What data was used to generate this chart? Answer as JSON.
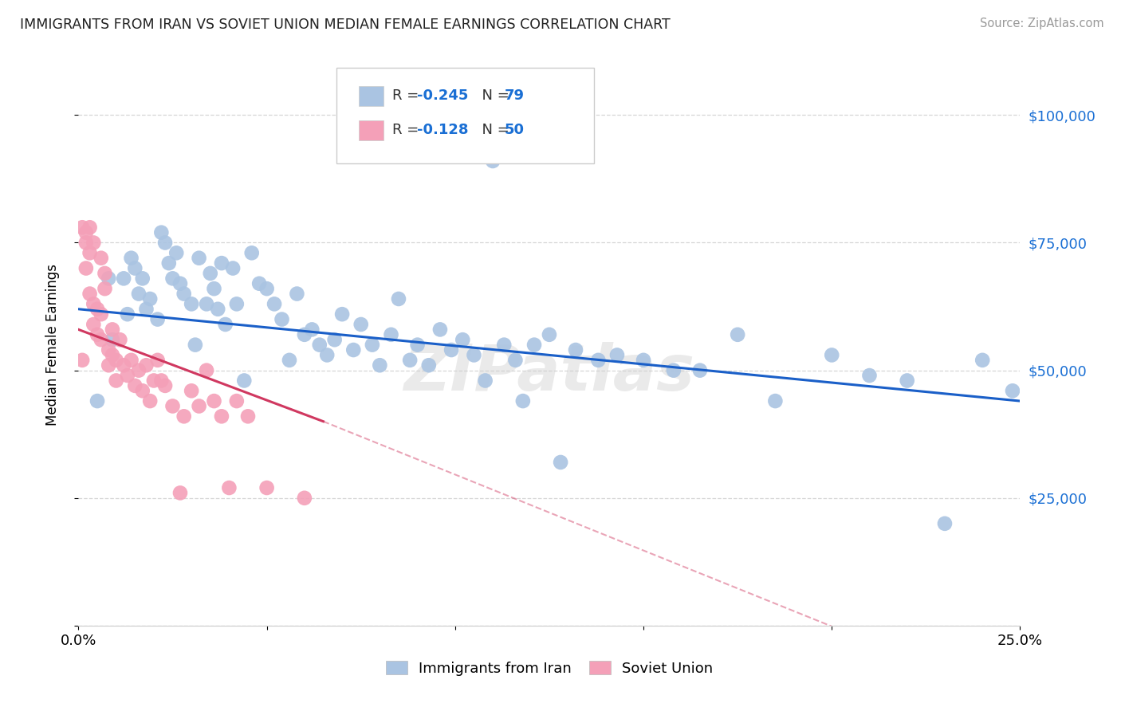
{
  "title": "IMMIGRANTS FROM IRAN VS SOVIET UNION MEDIAN FEMALE EARNINGS CORRELATION CHART",
  "source": "Source: ZipAtlas.com",
  "ylabel": "Median Female Earnings",
  "xlim": [
    0.0,
    0.25
  ],
  "ylim": [
    0,
    110000
  ],
  "xticks": [
    0.0,
    0.05,
    0.1,
    0.15,
    0.2,
    0.25
  ],
  "xticklabels": [
    "0.0%",
    "",
    "",
    "",
    "",
    "25.0%"
  ],
  "yticks": [
    0,
    25000,
    50000,
    75000,
    100000
  ],
  "yticklabels": [
    "",
    "$25,000",
    "$50,000",
    "$75,000",
    "$100,000"
  ],
  "iran_R": -0.245,
  "iran_N": 79,
  "soviet_R": -0.128,
  "soviet_N": 50,
  "iran_color": "#aac4e2",
  "iran_line_color": "#1a5fc8",
  "soviet_color": "#f4a0b8",
  "soviet_line_color": "#d03860",
  "iran_x": [
    0.005,
    0.008,
    0.009,
    0.012,
    0.013,
    0.014,
    0.015,
    0.016,
    0.017,
    0.018,
    0.019,
    0.021,
    0.022,
    0.023,
    0.024,
    0.025,
    0.026,
    0.027,
    0.028,
    0.03,
    0.031,
    0.032,
    0.034,
    0.035,
    0.036,
    0.037,
    0.038,
    0.039,
    0.041,
    0.042,
    0.044,
    0.046,
    0.048,
    0.05,
    0.052,
    0.054,
    0.056,
    0.058,
    0.06,
    0.062,
    0.064,
    0.066,
    0.068,
    0.07,
    0.073,
    0.075,
    0.078,
    0.08,
    0.083,
    0.085,
    0.088,
    0.09,
    0.093,
    0.096,
    0.099,
    0.102,
    0.105,
    0.108,
    0.11,
    0.113,
    0.116,
    0.118,
    0.121,
    0.125,
    0.128,
    0.132,
    0.138,
    0.143,
    0.15,
    0.158,
    0.165,
    0.175,
    0.185,
    0.2,
    0.21,
    0.22,
    0.23,
    0.24,
    0.248
  ],
  "iran_y": [
    44000,
    68000,
    56000,
    68000,
    61000,
    72000,
    70000,
    65000,
    68000,
    62000,
    64000,
    60000,
    77000,
    75000,
    71000,
    68000,
    73000,
    67000,
    65000,
    63000,
    55000,
    72000,
    63000,
    69000,
    66000,
    62000,
    71000,
    59000,
    70000,
    63000,
    48000,
    73000,
    67000,
    66000,
    63000,
    60000,
    52000,
    65000,
    57000,
    58000,
    55000,
    53000,
    56000,
    61000,
    54000,
    59000,
    55000,
    51000,
    57000,
    64000,
    52000,
    55000,
    51000,
    58000,
    54000,
    56000,
    53000,
    48000,
    91000,
    55000,
    52000,
    44000,
    55000,
    57000,
    32000,
    54000,
    52000,
    53000,
    52000,
    50000,
    50000,
    57000,
    44000,
    53000,
    49000,
    48000,
    20000,
    52000,
    46000
  ],
  "soviet_x": [
    0.001,
    0.001,
    0.002,
    0.002,
    0.002,
    0.003,
    0.003,
    0.003,
    0.004,
    0.004,
    0.004,
    0.005,
    0.005,
    0.006,
    0.006,
    0.006,
    0.007,
    0.007,
    0.008,
    0.008,
    0.009,
    0.009,
    0.01,
    0.01,
    0.011,
    0.012,
    0.013,
    0.014,
    0.015,
    0.016,
    0.017,
    0.018,
    0.019,
    0.02,
    0.021,
    0.022,
    0.023,
    0.025,
    0.027,
    0.028,
    0.03,
    0.032,
    0.034,
    0.036,
    0.038,
    0.04,
    0.042,
    0.045,
    0.05,
    0.06
  ],
  "soviet_y": [
    52000,
    78000,
    77000,
    75000,
    70000,
    65000,
    78000,
    73000,
    63000,
    59000,
    75000,
    62000,
    57000,
    61000,
    56000,
    72000,
    69000,
    66000,
    54000,
    51000,
    58000,
    53000,
    48000,
    52000,
    56000,
    51000,
    49000,
    52000,
    47000,
    50000,
    46000,
    51000,
    44000,
    48000,
    52000,
    48000,
    47000,
    43000,
    26000,
    41000,
    46000,
    43000,
    50000,
    44000,
    41000,
    27000,
    44000,
    41000,
    27000,
    25000
  ],
  "watermark": "ZIPatlas",
  "legend_entries": [
    {
      "label": "Immigrants from Iran",
      "color": "#aac4e2"
    },
    {
      "label": "Soviet Union",
      "color": "#f4a0b8"
    }
  ]
}
